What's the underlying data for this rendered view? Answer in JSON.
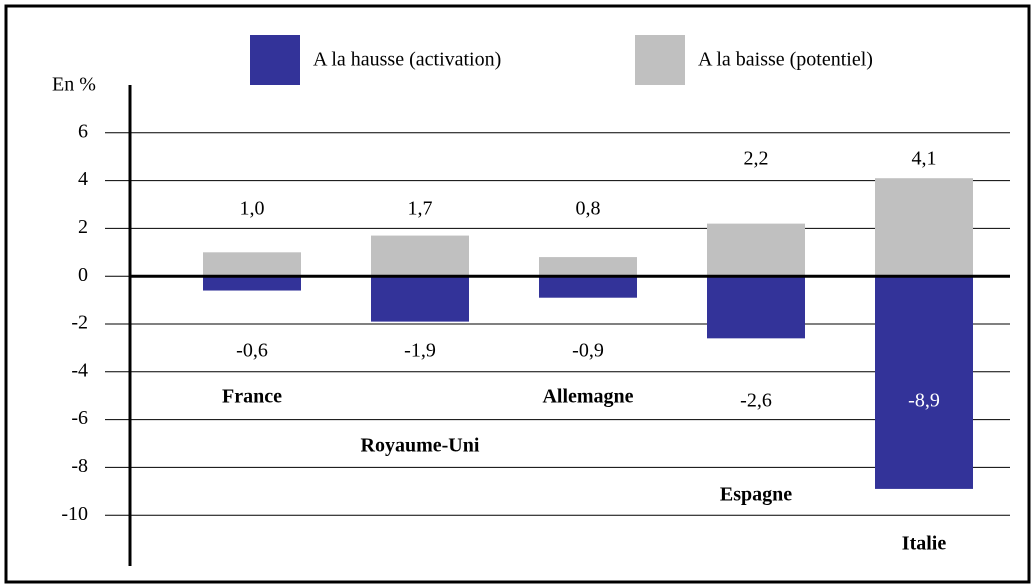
{
  "chart_data": {
    "type": "bar",
    "stacked": false,
    "y_label": "En %",
    "categories": [
      "France",
      "Royaume-Uni",
      "Allemagne",
      "Espagne",
      "Italie"
    ],
    "series": [
      {
        "name": "A la hausse (activation)",
        "color": "#333399",
        "values": [
          -0.6,
          -1.9,
          -0.9,
          -2.6,
          -8.9
        ],
        "value_labels": [
          "-0,6",
          "-1,9",
          "-0,9",
          "-2,6",
          "-8,9"
        ]
      },
      {
        "name": "A la baisse (potentiel)",
        "color": "#c0c0c0",
        "values": [
          1.0,
          1.7,
          0.8,
          2.2,
          4.1
        ],
        "value_labels": [
          "1,0",
          "1,7",
          "0,8",
          "2,2",
          "4,1"
        ]
      }
    ],
    "ylim": [
      -12,
      8
    ],
    "yticks": [
      -10,
      -8,
      -6,
      -4,
      -2,
      0,
      2,
      4,
      6
    ],
    "grid": true,
    "legend": "top"
  }
}
